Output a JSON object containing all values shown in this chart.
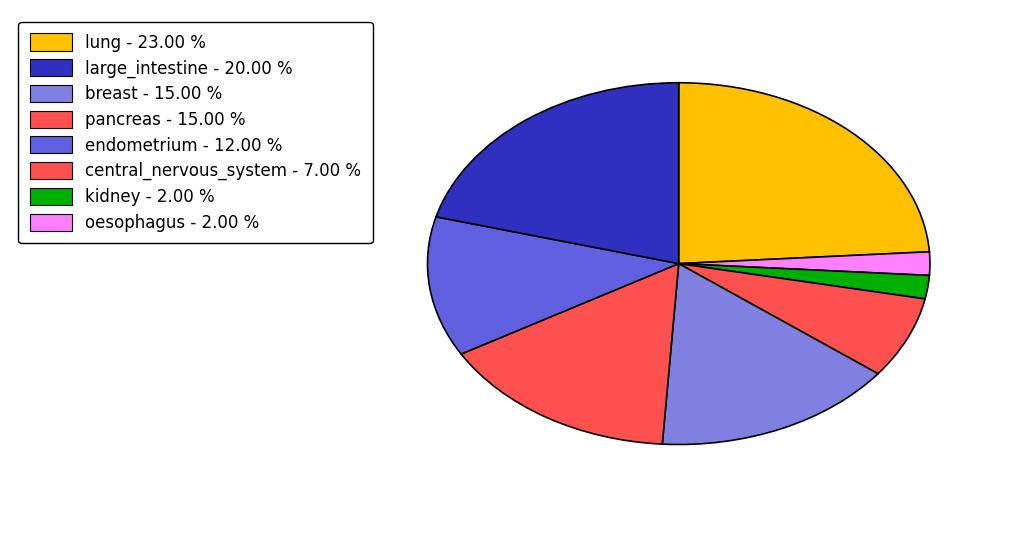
{
  "labels": [
    "lung",
    "oesophagus",
    "kidney",
    "central_nervous_system",
    "breast",
    "pancreas",
    "endometrium",
    "large_intestine"
  ],
  "values": [
    23.0,
    2.0,
    2.0,
    7.0,
    15.0,
    15.0,
    12.0,
    20.0
  ],
  "colors": [
    "#FFC000",
    "#FF80FF",
    "#00B000",
    "#FF5050",
    "#8080E0",
    "#FF5050",
    "#6060E0",
    "#3030C0"
  ],
  "legend_order_labels": [
    "lung",
    "large_intestine",
    "breast",
    "pancreas",
    "endometrium",
    "central_nervous_system",
    "kidney",
    "oesophagus"
  ],
  "legend_order_colors": [
    "#FFC000",
    "#3030C0",
    "#8080E0",
    "#FF5050",
    "#6060E0",
    "#FF5050",
    "#00B000",
    "#FF80FF"
  ],
  "legend_labels": [
    "lung - 23.00 %",
    "large_intestine - 20.00 %",
    "breast - 15.00 %",
    "pancreas - 15.00 %",
    "endometrium - 12.00 %",
    "central_nervous_system - 7.00 %",
    "kidney - 2.00 %",
    "oesophagus - 2.00 %"
  ],
  "background_color": "#ffffff",
  "figsize": [
    10.13,
    5.38
  ],
  "dpi": 100,
  "startangle": 90,
  "aspect_ratio": 0.72
}
